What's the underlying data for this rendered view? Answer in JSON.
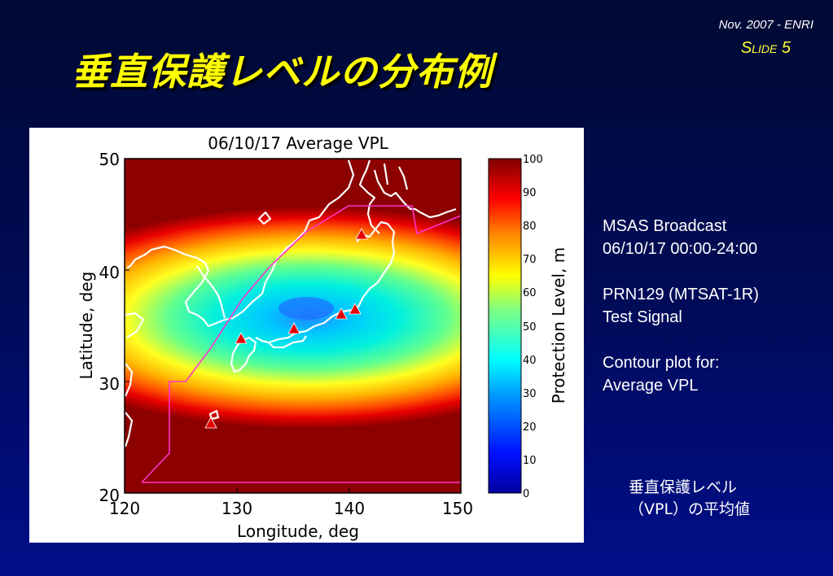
{
  "header": {
    "date_org": "Nov. 2007 - ENRI",
    "slide_number": "Slide 5"
  },
  "title": "垂直保護レベルの分布例",
  "figure": {
    "plot_title": "06/10/17 Average VPL",
    "x_label": "Longitude, deg",
    "y_label": "Latitude, deg",
    "x_ticks": [
      "120",
      "130",
      "140",
      "150"
    ],
    "y_ticks": [
      "20",
      "30",
      "40",
      "50"
    ],
    "colorbar_label": "Protection Level, m",
    "colorbar_ticks": [
      "0",
      "10",
      "20",
      "30",
      "40",
      "50",
      "60",
      "70",
      "80",
      "90",
      "100"
    ],
    "colors": {
      "coastline": "#ffffff",
      "boundary": "#ff33cc",
      "station": "#e60000"
    }
  },
  "notes": {
    "line1": "MSAS Broadcast",
    "line2": "06/10/17 00:00-24:00",
    "line3": "PRN129 (MTSAT-1R)",
    "line4": "Test Signal",
    "line5": "Contour plot for:",
    "line6": "Average VPL"
  },
  "caption": {
    "line1": "垂直保護レベル",
    "line2": "（VPL）の平均値"
  }
}
